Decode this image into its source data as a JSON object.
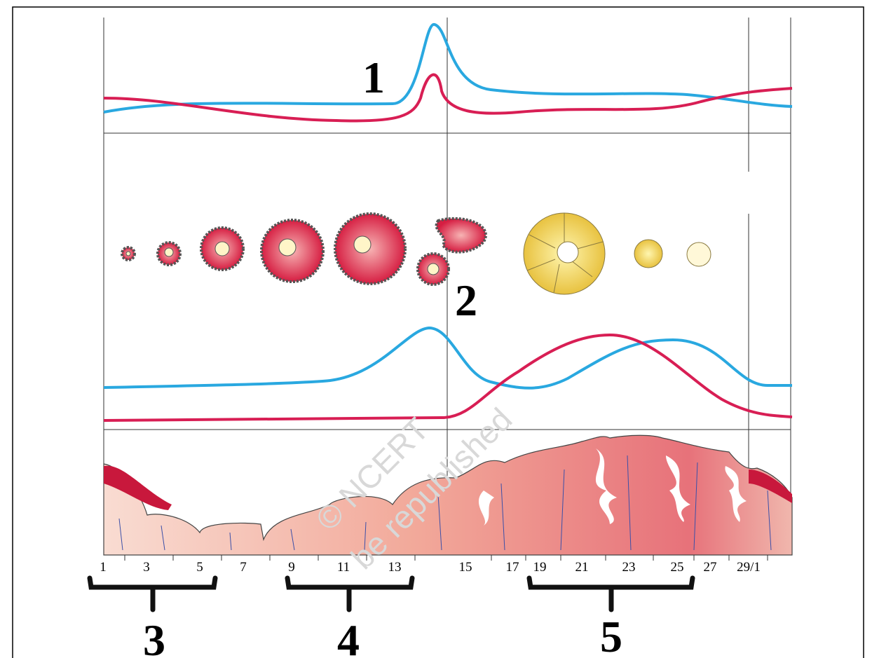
{
  "labels": [
    "1",
    "2",
    "3",
    "4",
    "5"
  ],
  "days": [
    "1",
    "3",
    "5",
    "7",
    "9",
    "11",
    "13",
    "15",
    "17",
    "19",
    "21",
    "23",
    "25",
    "27",
    "29/1"
  ],
  "watermark": [
    "© NCERT",
    "be republished"
  ]
}
